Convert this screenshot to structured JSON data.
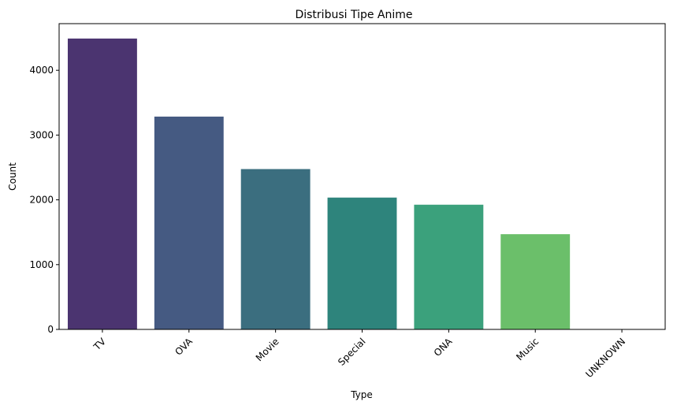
{
  "chart_data": {
    "type": "bar",
    "title": "Distribusi Tipe Anime",
    "xlabel": "Type",
    "ylabel": "Count",
    "categories": [
      "TV",
      "OVA",
      "Movie",
      "Special",
      "ONA",
      "Music",
      "UNKNOWN"
    ],
    "values": [
      4490,
      3285,
      2475,
      2035,
      1925,
      1470,
      0
    ],
    "colors": [
      "#4b3470",
      "#455a82",
      "#3b6e7f",
      "#2e847c",
      "#3ba17c",
      "#6bbf6a",
      "#b8d84a"
    ],
    "ylim": [
      0,
      4720
    ],
    "yticks": [
      0,
      1000,
      2000,
      3000,
      4000
    ],
    "xtick_rotation_deg": 45,
    "grid": false,
    "legend": "none"
  }
}
